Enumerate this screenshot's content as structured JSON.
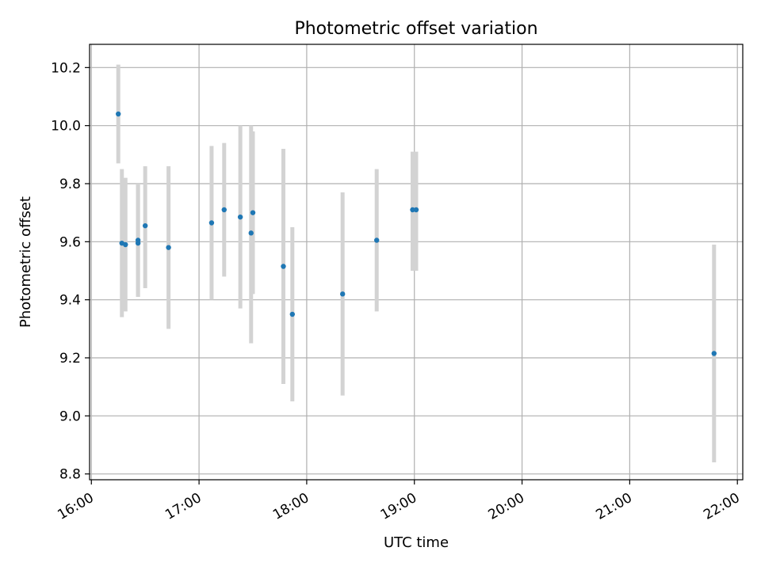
{
  "chart_data": {
    "type": "scatter",
    "title": "Photometric offset variation",
    "xlabel": "UTC time",
    "ylabel": "Photometric offset",
    "x_axis_type": "time",
    "xlim": [
      "15:59",
      "22:03"
    ],
    "ylim": [
      8.78,
      10.28
    ],
    "x_ticks": [
      "16:00",
      "17:00",
      "18:00",
      "19:00",
      "20:00",
      "21:00",
      "22:00"
    ],
    "y_ticks": [
      8.8,
      9.0,
      9.2,
      9.4,
      9.6,
      9.8,
      10.0,
      10.2
    ],
    "grid": true,
    "colors": {
      "point": "#1f77b4",
      "errorbar": "#d3d3d3",
      "grid": "#b0b0b0"
    },
    "series": [
      {
        "points": [
          {
            "x": "16:15",
            "y": 10.04,
            "yerr_low": 9.87,
            "yerr_high": 10.21
          },
          {
            "x": "16:17",
            "y": 9.595,
            "yerr_low": 9.34,
            "yerr_high": 9.85
          },
          {
            "x": "16:19",
            "y": 9.59,
            "yerr_low": 9.36,
            "yerr_high": 9.82
          },
          {
            "x": "16:26",
            "y": 9.595,
            "yerr_low": 9.41,
            "yerr_high": 9.8
          },
          {
            "x": "16:26",
            "y": 9.605,
            "yerr_low": 9.41,
            "yerr_high": 9.8
          },
          {
            "x": "16:30",
            "y": 9.655,
            "yerr_low": 9.44,
            "yerr_high": 9.86
          },
          {
            "x": "16:43",
            "y": 9.58,
            "yerr_low": 9.3,
            "yerr_high": 9.86
          },
          {
            "x": "17:07",
            "y": 9.665,
            "yerr_low": 9.4,
            "yerr_high": 9.93
          },
          {
            "x": "17:14",
            "y": 9.71,
            "yerr_low": 9.48,
            "yerr_high": 9.94
          },
          {
            "x": "17:23",
            "y": 9.685,
            "yerr_low": 9.37,
            "yerr_high": 10.0
          },
          {
            "x": "17:29",
            "y": 9.63,
            "yerr_low": 9.25,
            "yerr_high": 10.0
          },
          {
            "x": "17:30",
            "y": 9.7,
            "yerr_low": 9.42,
            "yerr_high": 9.98
          },
          {
            "x": "17:47",
            "y": 9.515,
            "yerr_low": 9.11,
            "yerr_high": 9.92
          },
          {
            "x": "17:52",
            "y": 9.35,
            "yerr_low": 9.05,
            "yerr_high": 9.65
          },
          {
            "x": "18:20",
            "y": 9.42,
            "yerr_low": 9.07,
            "yerr_high": 9.77
          },
          {
            "x": "18:39",
            "y": 9.605,
            "yerr_low": 9.36,
            "yerr_high": 9.85
          },
          {
            "x": "18:59",
            "y": 9.71,
            "yerr_low": 9.5,
            "yerr_high": 9.91
          },
          {
            "x": "19:01",
            "y": 9.71,
            "yerr_low": 9.5,
            "yerr_high": 9.91
          },
          {
            "x": "21:47",
            "y": 9.215,
            "yerr_low": 8.84,
            "yerr_high": 9.59
          }
        ]
      }
    ]
  }
}
